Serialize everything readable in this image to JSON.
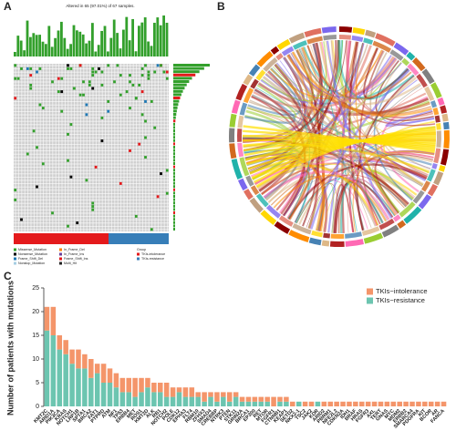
{
  "panel_a": {
    "label": "A",
    "title": "Altered in 65 (97.01%) of 67 samples.",
    "legend": [
      "Missense_Mutation",
      "Nonsense_Mutation",
      "Frame_Shift_Del",
      "Nonstop_Mutation",
      "In_Frame_Del",
      "In_Frame_Ins",
      "Frame_Shift_Ins",
      "Multi_Hit"
    ],
    "group_title": "Group",
    "group_legend": [
      "TKIs-intolerance",
      "TKIs-resistance"
    ]
  },
  "panel_b": {
    "label": "B"
  },
  "panel_c": {
    "label": "C"
  },
  "chart_data": {
    "type": "stacked_bar",
    "ylabel": "Number of patients with mutations",
    "categories": [
      "KMT2C",
      "ARID1A",
      "PIK3CA",
      "KRAS",
      "NOTCH1",
      "LRP1B",
      "SPTA1",
      "BRCA2",
      "FAT1",
      "PTPRD",
      "ATM",
      "NF1",
      "TP53",
      "ERBB4",
      "MET",
      "ROS1",
      "KMT2D",
      "ALK",
      "RB1",
      "NOTCH2",
      "POLE",
      "CDK12",
      "EPHA3",
      "FLT4",
      "RBM10",
      "ZFHX3",
      "SMAD4",
      "CREBBP",
      "NTRK3",
      "PTEN",
      "STK11",
      "GRIN2A",
      "BRCA1",
      "EP300",
      "RET",
      "MTOR",
      "FGFR1",
      "CTNNB1",
      "KEAP1",
      "SETD2",
      "NKX2-1",
      "TSC2",
      "JAK2",
      "KDR",
      "ARID2",
      "PBRM1",
      "NFE2L2",
      "CDKN2A",
      "IDH1",
      "BRAF",
      "HRAS",
      "FGFR3",
      "AXL",
      "TERT",
      "GNAS",
      "MYC",
      "MDM2",
      "ERBB2",
      "SMARCA4",
      "PDGFRA",
      "KIT",
      "BCOR",
      "AR",
      "FANCA"
    ],
    "series": [
      {
        "name": "TKIs−resistance",
        "color": "#6cc5b0",
        "values": [
          16,
          15,
          12,
          11,
          9,
          8,
          8,
          6,
          7,
          5,
          5,
          4,
          3,
          3,
          2,
          3,
          4,
          3,
          3,
          2,
          2,
          3,
          2,
          2,
          2,
          1,
          2,
          1,
          2,
          1,
          2,
          1,
          1,
          1,
          1,
          1,
          0,
          1,
          1,
          0,
          1,
          0,
          0,
          1,
          0,
          0,
          0,
          0,
          0,
          0,
          0,
          0,
          0,
          0,
          0,
          0,
          0,
          0,
          0,
          0,
          0,
          0,
          0,
          0
        ]
      },
      {
        "name": "TKIs−intolerance",
        "color": "#f4956a",
        "values": [
          5,
          6,
          3,
          3,
          3,
          4,
          3,
          4,
          2,
          4,
          3,
          3,
          3,
          3,
          4,
          3,
          2,
          2,
          2,
          3,
          2,
          1,
          2,
          2,
          1,
          2,
          1,
          2,
          1,
          2,
          1,
          1,
          1,
          1,
          1,
          1,
          2,
          1,
          1,
          1,
          0,
          1,
          1,
          0,
          1,
          1,
          1,
          1,
          1,
          1,
          1,
          1,
          1,
          1,
          1,
          1,
          1,
          1,
          1,
          1,
          1,
          1,
          1,
          1
        ]
      }
    ],
    "ylim": [
      0,
      25
    ],
    "yticks": [
      0,
      5,
      10,
      15,
      20,
      25
    ],
    "legend_position": "top-right"
  }
}
